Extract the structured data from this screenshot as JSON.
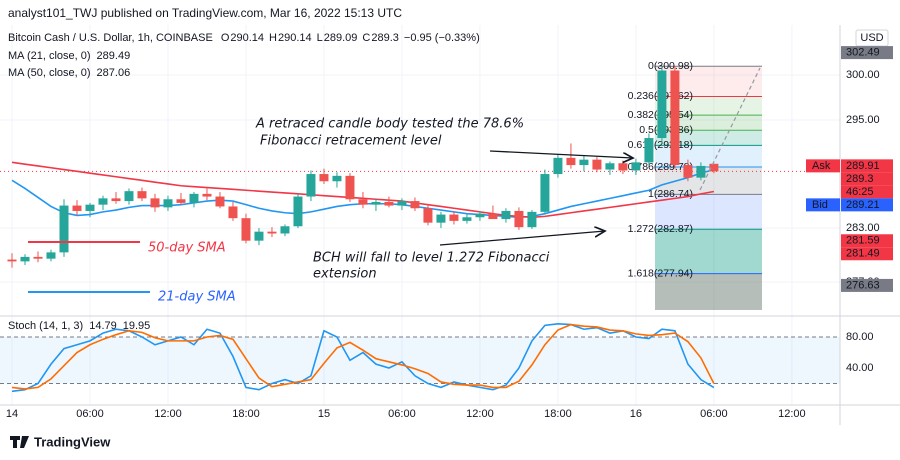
{
  "chart_data": {
    "type": "candlestick",
    "header": "analyst101_TWJ published on TradingView.com, Mar 16, 2022 15:13 UTC",
    "title": "Bitcoin Cash / U.S. Dollar, 1h, COINBASE",
    "ohlc_prefixes": [
      "O",
      "H",
      "L",
      "C"
    ],
    "change": "−0.95 (−0.33%)",
    "up_color": "#26a69a",
    "down_color": "#ef5350",
    "x": [
      0,
      1,
      2,
      3,
      4,
      5,
      6,
      7,
      8,
      9,
      10,
      11,
      12,
      13,
      14,
      15,
      16,
      17,
      18,
      19,
      20,
      21,
      22,
      23,
      24,
      25,
      26,
      27,
      28,
      29,
      30,
      31,
      32,
      33,
      34,
      35,
      36,
      37,
      38,
      39,
      40,
      41,
      42,
      43,
      44,
      45,
      46,
      47,
      48,
      49,
      50,
      51,
      52,
      53,
      54
    ],
    "open": [
      279.5,
      279.3,
      279.8,
      279.6,
      280.3,
      285.5,
      284.9,
      285.6,
      286.3,
      286.0,
      287.1,
      286.3,
      285.3,
      286.2,
      285.8,
      286.8,
      286.5,
      285.4,
      284.1,
      281.6,
      282.6,
      282.4,
      283.2,
      286.5,
      289.0,
      288.2,
      288.8,
      286.2,
      285.6,
      285.9,
      285.5,
      286.0,
      285.2,
      283.6,
      284.5,
      283.8,
      284.2,
      284.6,
      284.0,
      284.9,
      283.1,
      284.8,
      289.0,
      290.8,
      290.0,
      290.6,
      289.5,
      290.2,
      289.4,
      290.3,
      293.0,
      300.5,
      290.0,
      288.6,
      290.14
    ],
    "high": [
      280.2,
      280.1,
      280.4,
      280.6,
      286.2,
      286.1,
      285.8,
      286.6,
      287.0,
      287.4,
      287.5,
      286.8,
      286.6,
      286.9,
      287.0,
      287.4,
      287.0,
      285.9,
      284.6,
      283.0,
      283.1,
      283.4,
      286.8,
      289.4,
      289.6,
      289.2,
      289.1,
      287.0,
      286.3,
      286.5,
      286.3,
      286.4,
      285.6,
      284.8,
      284.9,
      284.6,
      284.9,
      285.5,
      285.2,
      285.3,
      285.0,
      289.5,
      291.2,
      292.4,
      291.0,
      290.9,
      290.4,
      290.5,
      290.7,
      293.5,
      301.0,
      301.0,
      290.6,
      290.3,
      290.14
    ],
    "low": [
      278.6,
      278.9,
      279.2,
      279.3,
      279.8,
      284.4,
      284.2,
      285.0,
      285.7,
      285.6,
      286.0,
      284.8,
      284.9,
      285.6,
      285.3,
      286.1,
      285.2,
      283.8,
      281.3,
      281.1,
      282.0,
      282.1,
      283.0,
      286.0,
      287.9,
      287.5,
      285.9,
      285.2,
      284.9,
      285.3,
      285.0,
      284.9,
      283.3,
      283.0,
      283.4,
      283.5,
      283.8,
      284.0,
      283.6,
      282.8,
      282.9,
      284.5,
      288.6,
      289.6,
      289.3,
      289.2,
      288.9,
      289.0,
      288.9,
      290.0,
      292.5,
      289.6,
      288.2,
      288.3,
      289.09
    ],
    "close": [
      279.3,
      279.8,
      279.6,
      280.3,
      285.5,
      284.9,
      285.6,
      286.3,
      286.0,
      287.1,
      286.3,
      285.3,
      286.2,
      285.8,
      286.8,
      286.5,
      285.4,
      284.1,
      281.6,
      282.6,
      282.4,
      283.2,
      286.5,
      289.0,
      288.2,
      288.8,
      286.2,
      285.6,
      285.9,
      285.5,
      286.0,
      285.2,
      283.6,
      284.5,
      283.8,
      284.2,
      284.6,
      284.0,
      284.9,
      283.1,
      284.8,
      289.0,
      290.8,
      290.0,
      290.6,
      289.5,
      290.2,
      289.4,
      290.3,
      293.0,
      300.5,
      290.0,
      288.6,
      289.9,
      289.3
    ],
    "ma": [
      {
        "name": "MA (21, close, 0)",
        "color": "#2196f3",
        "values": [
          288.3,
          287.4,
          286.4,
          285.4,
          284.7,
          284.4,
          284.5,
          284.8,
          285.0,
          285.3,
          285.5,
          285.5,
          285.5,
          285.6,
          285.8,
          286.0,
          286.1,
          286.0,
          285.6,
          285.2,
          284.9,
          284.7,
          284.6,
          284.8,
          285.1,
          285.4,
          285.6,
          285.7,
          285.7,
          285.7,
          285.6,
          285.4,
          285.2,
          285.0,
          284.8,
          284.6,
          284.5,
          284.4,
          284.3,
          284.2,
          284.3,
          284.6,
          285.0,
          285.4,
          285.7,
          286.0,
          286.3,
          286.6,
          286.9,
          287.2,
          287.8,
          288.2,
          288.6,
          289.1,
          289.49
        ]
      },
      {
        "name": "MA (50, close, 0)",
        "color": "#f23645",
        "values": [
          290.3,
          290.1,
          289.9,
          289.7,
          289.5,
          289.3,
          289.1,
          288.9,
          288.7,
          288.5,
          288.3,
          288.1,
          287.9,
          287.7,
          287.6,
          287.5,
          287.4,
          287.3,
          287.2,
          287.1,
          287.0,
          286.9,
          286.8,
          286.7,
          286.6,
          286.5,
          286.4,
          286.3,
          286.2,
          286.1,
          286.0,
          285.8,
          285.6,
          285.4,
          285.2,
          285.0,
          284.8,
          284.6,
          284.4,
          284.3,
          284.2,
          284.3,
          284.5,
          284.7,
          284.9,
          285.1,
          285.3,
          285.5,
          285.7,
          285.9,
          286.1,
          286.3,
          286.5,
          286.8,
          287.06
        ]
      }
    ],
    "xlim": [
      0,
      63.7
    ],
    "xticks": [
      {
        "value": 0,
        "label": "14"
      },
      {
        "value": 6,
        "label": "06:00"
      },
      {
        "value": 12,
        "label": "12:00"
      },
      {
        "value": 18,
        "label": "18:00"
      },
      {
        "value": 24,
        "label": "15"
      },
      {
        "value": 30,
        "label": "06:00"
      },
      {
        "value": 36,
        "label": "12:00"
      },
      {
        "value": 42,
        "label": "18:00"
      },
      {
        "value": 48,
        "label": "16"
      },
      {
        "value": 54,
        "label": "06:00"
      },
      {
        "value": 60,
        "label": "12:00"
      }
    ],
    "ylim": [
      273.9,
      305
    ],
    "yticks": [
      {
        "value": 300,
        "label": "300.00"
      },
      {
        "value": 295,
        "label": "295.00"
      },
      {
        "value": 283,
        "label": "283.00"
      },
      {
        "value": 277,
        "label": "277.00"
      }
    ],
    "currency": "USD",
    "price_labels": [
      {
        "value": 302.49,
        "color": "#787b86"
      },
      {
        "value": 289.91,
        "color": "#f23645",
        "tag": "Ask"
      },
      {
        "value": 289.3,
        "color": "#f23645"
      },
      {
        "value": 289.21,
        "color": "#2962ff",
        "tag": "Bid"
      },
      {
        "value": 281.59,
        "color": "#f23645"
      },
      {
        "value": 281.49,
        "color": "#f23645"
      },
      {
        "value": 276.63,
        "color": "#787b86"
      }
    ],
    "countdown": "46:25",
    "fib": [
      {
        "label": "0(300.98)",
        "value": 300.98,
        "color": "#787b86",
        "fill": "rgba(242,54,69,0.10)"
      },
      {
        "label": "0.236(297.62)",
        "value": 297.62,
        "color": "#f23645",
        "fill": "rgba(76,175,80,0.14)"
      },
      {
        "label": "0.382(295.54)",
        "value": 295.54,
        "color": "#4caf50",
        "fill": "rgba(76,175,80,0.20)"
      },
      {
        "label": "0.5(293.86)",
        "value": 293.86,
        "color": "#4caf50",
        "fill": "rgba(8,153,129,0.20)"
      },
      {
        "label": "0.618(292.18)",
        "value": 292.18,
        "color": "#089981",
        "fill": "rgba(33,150,243,0.14)"
      },
      {
        "label": "0.786(289.78)",
        "value": 289.78,
        "color": "#2196f3",
        "fill": "rgba(120,123,134,0.20)"
      },
      {
        "label": "1(286.74)",
        "value": 286.74,
        "color": "#787b86",
        "fill": "rgba(41,98,255,0.16)"
      },
      {
        "label": "1.272(282.87)",
        "value": 282.87,
        "color": "#089981",
        "fill": "rgba(8,153,129,0.38)"
      },
      {
        "label": "1.618(277.94)",
        "value": 277.94,
        "color": "#2962ff",
        "fill": "rgba(90,110,100,0.45)"
      }
    ],
    "stoch": {
      "name": "Stoch (14, 1, 3)",
      "ylim": [
        -7.7,
        104.5
      ],
      "band": [
        20,
        80
      ],
      "yticks": [
        {
          "value": 80,
          "label": "80.00"
        },
        {
          "value": 40,
          "label": "40.00"
        }
      ],
      "series": [
        {
          "color": "#2196f3",
          "values": [
            10,
            12,
            20,
            45,
            65,
            70,
            75,
            85,
            90,
            88,
            80,
            70,
            75,
            80,
            70,
            90,
            85,
            55,
            15,
            12,
            20,
            25,
            20,
            30,
            88,
            80,
            50,
            60,
            45,
            40,
            48,
            30,
            20,
            15,
            22,
            18,
            15,
            12,
            18,
            40,
            75,
            95,
            97,
            96,
            90,
            92,
            85,
            88,
            80,
            78,
            90,
            88,
            45,
            25,
            14.79
          ]
        },
        {
          "color": "#ff6d00",
          "values": [
            15,
            13,
            15,
            26,
            43,
            60,
            70,
            77,
            83,
            88,
            86,
            79,
            75,
            75,
            75,
            80,
            82,
            77,
            52,
            27,
            16,
            19,
            22,
            25,
            46,
            66,
            73,
            63,
            52,
            48,
            44,
            39,
            33,
            22,
            19,
            18,
            18,
            15,
            15,
            23,
            44,
            70,
            89,
            96,
            94,
            93,
            89,
            88,
            84,
            82,
            83,
            85,
            74,
            53,
            19.95
          ]
        }
      ]
    },
    "annotations": [
      "A retraced candle body tested the 78.6%",
      "Fibonacci retracement level",
      "BCH will fall to level 1.272 Fibonacci",
      "extension",
      "50-day SMA",
      "21-day SMA"
    ],
    "footer": "TradingView"
  }
}
